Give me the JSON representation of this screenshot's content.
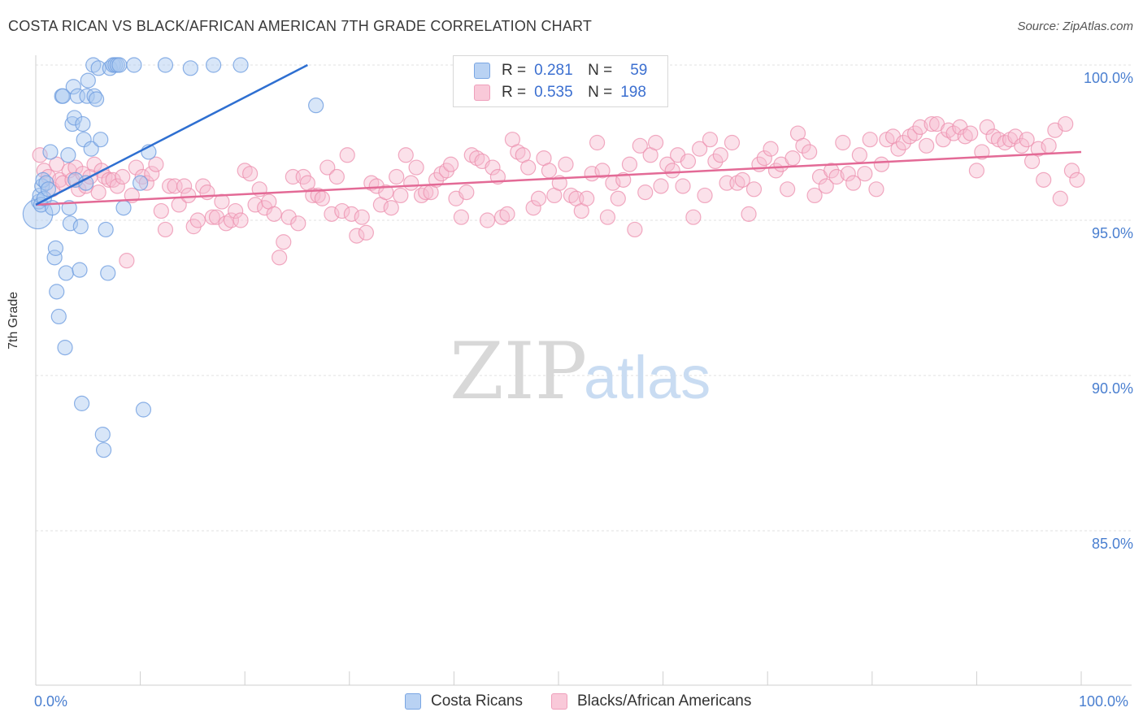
{
  "title": "COSTA RICAN VS BLACK/AFRICAN AMERICAN 7TH GRADE CORRELATION CHART",
  "source": "Source: ZipAtlas.com",
  "watermark": {
    "zip": "ZIP",
    "atlas": "atlas"
  },
  "colors": {
    "blue_fill": "#a9c8f0",
    "blue_stroke": "#6f9ee0",
    "blue_line": "#2e6fd1",
    "pink_fill": "#f7bcd0",
    "pink_stroke": "#ec8fae",
    "pink_line": "#e36a96",
    "tick_text": "#4a7fd0",
    "grid": "#e2e2e2"
  },
  "legend": {
    "rows": [
      {
        "r_label": "R =",
        "r_value": "0.281",
        "n_label": "N =",
        "n_value": "59"
      },
      {
        "r_label": "R =",
        "r_value": "0.535",
        "n_label": "N =",
        "n_value": "198"
      }
    ]
  },
  "bottom_legend": {
    "series1": "Costa Ricans",
    "series2": "Blacks/African Americans"
  },
  "chart_data": {
    "type": "scatter",
    "title": "COSTA RICAN VS BLACK/AFRICAN AMERICAN 7TH GRADE CORRELATION CHART",
    "xlabel": "",
    "ylabel": "7th Grade",
    "xlim": [
      0,
      100
    ],
    "ylim": [
      80.5,
      100.5
    ],
    "x_tick_labels": [
      "0.0%",
      "100.0%"
    ],
    "y_ticks": [
      85,
      90,
      95,
      100
    ],
    "y_tick_labels": [
      "85.0%",
      "90.0%",
      "95.0%",
      "100.0%"
    ],
    "grid": true,
    "legend_position": "top-center",
    "series": [
      {
        "name": "Costa Ricans",
        "R": 0.281,
        "N": 59,
        "trend": {
          "x": [
            0,
            26
          ],
          "y": [
            95.5,
            100
          ]
        },
        "points": [
          [
            0.2,
            95.2,
            3
          ],
          [
            0.3,
            95.6,
            1
          ],
          [
            0.4,
            95.8,
            1
          ],
          [
            0.5,
            95.5,
            1
          ],
          [
            0.6,
            96.1,
            1
          ],
          [
            0.7,
            96.3,
            1
          ],
          [
            0.8,
            95.7,
            1
          ],
          [
            1.0,
            96.2,
            1
          ],
          [
            1.2,
            96.0,
            1
          ],
          [
            1.4,
            97.2,
            1
          ],
          [
            1.6,
            95.4,
            1
          ],
          [
            1.8,
            93.8,
            1
          ],
          [
            1.9,
            94.1,
            1
          ],
          [
            2.0,
            92.7,
            1
          ],
          [
            2.2,
            91.9,
            1
          ],
          [
            2.5,
            99.0,
            1
          ],
          [
            2.6,
            99.0,
            1
          ],
          [
            2.8,
            90.9,
            1
          ],
          [
            2.9,
            93.3,
            1
          ],
          [
            3.1,
            97.1,
            1
          ],
          [
            3.2,
            95.4,
            1
          ],
          [
            3.3,
            94.9,
            1
          ],
          [
            3.5,
            98.1,
            1
          ],
          [
            3.6,
            99.3,
            1
          ],
          [
            3.7,
            98.3,
            1
          ],
          [
            3.8,
            96.3,
            1
          ],
          [
            4.0,
            99.0,
            1
          ],
          [
            4.2,
            93.4,
            1
          ],
          [
            4.3,
            94.8,
            1
          ],
          [
            4.4,
            89.1,
            1
          ],
          [
            4.5,
            98.1,
            1
          ],
          [
            4.6,
            97.6,
            1
          ],
          [
            4.8,
            96.2,
            1
          ],
          [
            4.9,
            99.0,
            1
          ],
          [
            5.0,
            99.5,
            1
          ],
          [
            5.3,
            97.3,
            1
          ],
          [
            5.5,
            100.0,
            1
          ],
          [
            5.6,
            99.0,
            1
          ],
          [
            5.8,
            98.9,
            1
          ],
          [
            6.0,
            99.9,
            1
          ],
          [
            6.2,
            97.6,
            1
          ],
          [
            6.4,
            88.1,
            1
          ],
          [
            6.5,
            87.6,
            1
          ],
          [
            6.7,
            94.7,
            1
          ],
          [
            6.9,
            93.3,
            1
          ],
          [
            7.1,
            99.9,
            1
          ],
          [
            7.4,
            100.0,
            1
          ],
          [
            7.6,
            100.0,
            1
          ],
          [
            7.8,
            100.0,
            1
          ],
          [
            8.0,
            100.0,
            1
          ],
          [
            8.4,
            95.4,
            1
          ],
          [
            9.4,
            100.0,
            1
          ],
          [
            10.0,
            96.2,
            1
          ],
          [
            10.3,
            88.9,
            1
          ],
          [
            10.8,
            97.2,
            1
          ],
          [
            12.4,
            100.0,
            1
          ],
          [
            14.8,
            99.9,
            1
          ],
          [
            17.0,
            100.0,
            1
          ],
          [
            19.6,
            100.0,
            1
          ],
          [
            26.8,
            98.7,
            1
          ]
        ]
      },
      {
        "name": "Blacks/African Americans",
        "R": 0.535,
        "N": 198,
        "trend": {
          "x": [
            0,
            100
          ],
          "y": [
            95.5,
            97.2
          ]
        },
        "points": [
          [
            0.4,
            97.1
          ],
          [
            0.8,
            96.6
          ],
          [
            1.2,
            96.4
          ],
          [
            1.6,
            96.0
          ],
          [
            2.0,
            96.8
          ],
          [
            2.3,
            96.3
          ],
          [
            2.6,
            96.2
          ],
          [
            3.2,
            96.6
          ],
          [
            3.5,
            96.3
          ],
          [
            3.8,
            96.7
          ],
          [
            4.1,
            96.0
          ],
          [
            4.5,
            96.5
          ],
          [
            4.8,
            96.1
          ],
          [
            5.2,
            96.4
          ],
          [
            5.6,
            96.8
          ],
          [
            6.0,
            95.9
          ],
          [
            6.3,
            96.6
          ],
          [
            6.6,
            96.4
          ],
          [
            7.0,
            96.3
          ],
          [
            7.4,
            96.3
          ],
          [
            7.8,
            96.1
          ],
          [
            8.3,
            96.4
          ],
          [
            8.7,
            93.7
          ],
          [
            9.2,
            95.8
          ],
          [
            9.6,
            96.7
          ],
          [
            10.2,
            96.4
          ],
          [
            10.6,
            96.2
          ],
          [
            11.1,
            96.5
          ],
          [
            11.5,
            96.8
          ],
          [
            12.0,
            95.3
          ],
          [
            12.4,
            94.7
          ],
          [
            12.8,
            96.1
          ],
          [
            13.3,
            96.1
          ],
          [
            13.7,
            95.5
          ],
          [
            14.2,
            96.1
          ],
          [
            14.6,
            95.8
          ],
          [
            15.1,
            94.8
          ],
          [
            15.5,
            95.0
          ],
          [
            16.0,
            96.1
          ],
          [
            16.4,
            95.9
          ],
          [
            16.9,
            95.1
          ],
          [
            17.3,
            95.1
          ],
          [
            17.8,
            95.6
          ],
          [
            18.2,
            94.9
          ],
          [
            18.7,
            95.0
          ],
          [
            19.1,
            95.3
          ],
          [
            19.6,
            95.0
          ],
          [
            20.0,
            96.6
          ],
          [
            20.5,
            96.5
          ],
          [
            21.0,
            95.5
          ],
          [
            21.4,
            96.0
          ],
          [
            21.9,
            95.4
          ],
          [
            22.3,
            95.6
          ],
          [
            22.8,
            95.2
          ],
          [
            23.3,
            93.8
          ],
          [
            23.7,
            94.3
          ],
          [
            24.2,
            95.1
          ],
          [
            24.6,
            96.4
          ],
          [
            25.1,
            94.9
          ],
          [
            25.6,
            96.4
          ],
          [
            26.0,
            96.2
          ],
          [
            26.5,
            95.8
          ],
          [
            27.0,
            95.8
          ],
          [
            27.4,
            95.7
          ],
          [
            27.9,
            96.7
          ],
          [
            28.3,
            95.2
          ],
          [
            28.8,
            96.4
          ],
          [
            29.3,
            95.3
          ],
          [
            29.8,
            97.1
          ],
          [
            30.2,
            95.2
          ],
          [
            30.7,
            94.5
          ],
          [
            31.2,
            95.1
          ],
          [
            31.6,
            94.6
          ],
          [
            32.1,
            96.2
          ],
          [
            32.6,
            96.1
          ],
          [
            33.0,
            95.5
          ],
          [
            33.5,
            95.9
          ],
          [
            34.0,
            95.4
          ],
          [
            34.5,
            96.4
          ],
          [
            34.9,
            95.8
          ],
          [
            35.4,
            97.1
          ],
          [
            35.9,
            96.2
          ],
          [
            36.4,
            96.7
          ],
          [
            36.9,
            95.8
          ],
          [
            37.3,
            95.9
          ],
          [
            37.8,
            95.9
          ],
          [
            38.3,
            96.3
          ],
          [
            38.8,
            96.5
          ],
          [
            39.3,
            96.6
          ],
          [
            39.7,
            96.8
          ],
          [
            40.2,
            95.7
          ],
          [
            40.7,
            95.1
          ],
          [
            41.2,
            95.9
          ],
          [
            41.7,
            97.1
          ],
          [
            42.2,
            97.0
          ],
          [
            42.7,
            96.9
          ],
          [
            43.2,
            95.0
          ],
          [
            43.7,
            96.7
          ],
          [
            44.2,
            96.4
          ],
          [
            44.6,
            95.1
          ],
          [
            45.1,
            95.2
          ],
          [
            45.6,
            97.6
          ],
          [
            46.1,
            97.2
          ],
          [
            46.6,
            97.1
          ],
          [
            47.1,
            96.7
          ],
          [
            47.6,
            95.4
          ],
          [
            48.1,
            95.7
          ],
          [
            48.6,
            97.0
          ],
          [
            49.1,
            96.6
          ],
          [
            49.6,
            95.8
          ],
          [
            50.1,
            96.2
          ],
          [
            50.7,
            96.8
          ],
          [
            51.2,
            95.8
          ],
          [
            51.7,
            95.7
          ],
          [
            52.2,
            95.3
          ],
          [
            52.7,
            95.7
          ],
          [
            53.2,
            96.5
          ],
          [
            53.7,
            97.5
          ],
          [
            54.2,
            96.6
          ],
          [
            54.7,
            95.1
          ],
          [
            55.2,
            96.2
          ],
          [
            55.7,
            95.7
          ],
          [
            56.2,
            96.3
          ],
          [
            56.8,
            96.8
          ],
          [
            57.3,
            94.7
          ],
          [
            57.8,
            97.4
          ],
          [
            58.3,
            95.9
          ],
          [
            58.8,
            97.1
          ],
          [
            59.3,
            97.5
          ],
          [
            59.8,
            96.1
          ],
          [
            60.4,
            96.8
          ],
          [
            60.9,
            96.6
          ],
          [
            61.4,
            97.1
          ],
          [
            61.9,
            96.1
          ],
          [
            62.4,
            96.9
          ],
          [
            62.9,
            95.1
          ],
          [
            63.5,
            97.3
          ],
          [
            64.0,
            95.8
          ],
          [
            64.5,
            97.6
          ],
          [
            65.0,
            96.9
          ],
          [
            65.5,
            97.1
          ],
          [
            66.1,
            96.2
          ],
          [
            66.6,
            97.5
          ],
          [
            67.1,
            96.2
          ],
          [
            67.6,
            96.3
          ],
          [
            68.2,
            95.2
          ],
          [
            68.7,
            96.0
          ],
          [
            69.2,
            96.8
          ],
          [
            69.7,
            97.0
          ],
          [
            70.3,
            97.3
          ],
          [
            70.8,
            96.6
          ],
          [
            71.3,
            96.8
          ],
          [
            71.9,
            96.0
          ],
          [
            72.4,
            97.0
          ],
          [
            72.9,
            97.8
          ],
          [
            73.4,
            97.4
          ],
          [
            74.0,
            97.2
          ],
          [
            74.5,
            95.8
          ],
          [
            75.0,
            96.4
          ],
          [
            75.6,
            96.1
          ],
          [
            76.1,
            96.6
          ],
          [
            76.6,
            96.4
          ],
          [
            77.2,
            97.5
          ],
          [
            77.7,
            96.5
          ],
          [
            78.2,
            96.2
          ],
          [
            78.8,
            97.1
          ],
          [
            79.3,
            96.5
          ],
          [
            79.8,
            97.6
          ],
          [
            80.4,
            96.0
          ],
          [
            80.9,
            96.8
          ],
          [
            81.4,
            97.6
          ],
          [
            82.0,
            97.7
          ],
          [
            82.5,
            97.3
          ],
          [
            83.0,
            97.5
          ],
          [
            83.6,
            97.7
          ],
          [
            84.1,
            97.8
          ],
          [
            84.6,
            98.0
          ],
          [
            85.2,
            97.4
          ],
          [
            85.7,
            98.1
          ],
          [
            86.2,
            98.1
          ],
          [
            86.8,
            97.6
          ],
          [
            87.3,
            97.9
          ],
          [
            87.8,
            97.8
          ],
          [
            88.4,
            98.0
          ],
          [
            88.9,
            97.7
          ],
          [
            89.4,
            97.8
          ],
          [
            90.0,
            96.6
          ],
          [
            90.5,
            97.2
          ],
          [
            91.0,
            98.0
          ],
          [
            91.6,
            97.7
          ],
          [
            92.1,
            97.6
          ],
          [
            92.7,
            97.5
          ],
          [
            93.2,
            97.6
          ],
          [
            93.7,
            97.7
          ],
          [
            94.3,
            97.4
          ],
          [
            94.8,
            97.6
          ],
          [
            95.3,
            96.9
          ],
          [
            95.9,
            97.3
          ],
          [
            96.4,
            96.3
          ],
          [
            96.9,
            97.4
          ],
          [
            97.5,
            97.9
          ],
          [
            98.0,
            95.7
          ],
          [
            98.5,
            98.1
          ],
          [
            99.1,
            96.6
          ],
          [
            99.6,
            96.3
          ]
        ]
      }
    ]
  }
}
